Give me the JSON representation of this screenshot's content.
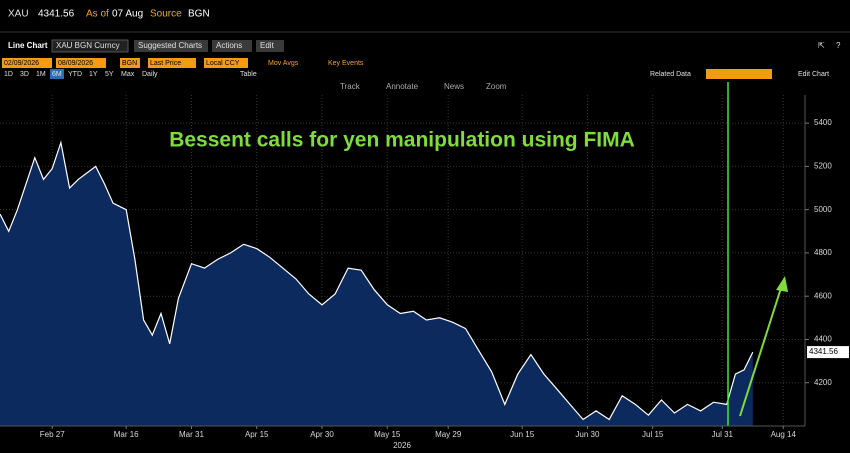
{
  "header": {
    "ticker": "XAU",
    "as_of_label": "As of",
    "as_of": "07 Aug",
    "source_label": "Source",
    "source": "BGN"
  },
  "toolbar": {
    "chart_type": "Line Chart",
    "security": "XAU BGN Curncy",
    "menus": [
      "Suggested Charts",
      "Actions",
      "Edit"
    ]
  },
  "settings_bar": {
    "start_date": "02/09/2026",
    "end_date": "08/09/2026",
    "source": "BGN",
    "field": "Last Price",
    "currency": "Local CCY",
    "mov_avgs": "Mov Avgs",
    "key_events": "Key Events",
    "related_data": "Related Data",
    "edit_chart": "Edit Chart"
  },
  "period_bar": {
    "periods": [
      "1D",
      "3D",
      "1M",
      "6M",
      "YTD",
      "1Y",
      "5Y",
      "Max",
      "Daily"
    ],
    "table": "Table"
  },
  "tools": [
    "Track",
    "Annotate",
    "News",
    "Zoom"
  ],
  "chart_data": {
    "type": "area",
    "annotation": "Bessent calls for yen manipulation using FIMA",
    "x_axis_year": "2026",
    "xlim": [
      "2026-02-15",
      "2026-08-19"
    ],
    "xticks": [
      {
        "value": "2026-02-27",
        "label": "Feb 27"
      },
      {
        "value": "2026-03-16",
        "label": "Mar 16"
      },
      {
        "value": "2026-03-31",
        "label": "Mar 31"
      },
      {
        "value": "2026-04-15",
        "label": "Apr 15"
      },
      {
        "value": "2026-04-30",
        "label": "Apr 30"
      },
      {
        "value": "2026-05-15",
        "label": "May 15"
      },
      {
        "value": "2026-05-29",
        "label": "May 29"
      },
      {
        "value": "2026-06-15",
        "label": "Jun 15"
      },
      {
        "value": "2026-06-30",
        "label": "Jun 30"
      },
      {
        "value": "2026-07-15",
        "label": "Jul 15"
      },
      {
        "value": "2026-07-31",
        "label": "Jul 31"
      },
      {
        "value": "2026-08-14",
        "label": "Aug 14"
      }
    ],
    "ylim": [
      4000,
      5530
    ],
    "yticks": [
      4200,
      4400,
      4600,
      4800,
      5000,
      5200,
      5400
    ],
    "grid": true,
    "x": [
      "2026-02-15",
      "2026-02-17",
      "2026-02-19",
      "2026-02-21",
      "2026-02-23",
      "2026-02-25",
      "2026-02-27",
      "2026-03-01",
      "2026-03-03",
      "2026-03-05",
      "2026-03-07",
      "2026-03-09",
      "2026-03-11",
      "2026-03-13",
      "2026-03-16",
      "2026-03-18",
      "2026-03-20",
      "2026-03-22",
      "2026-03-24",
      "2026-03-26",
      "2026-03-28",
      "2026-03-31",
      "2026-04-03",
      "2026-04-06",
      "2026-04-09",
      "2026-04-12",
      "2026-04-15",
      "2026-04-18",
      "2026-04-21",
      "2026-04-24",
      "2026-04-27",
      "2026-04-30",
      "2026-05-03",
      "2026-05-06",
      "2026-05-09",
      "2026-05-12",
      "2026-05-15",
      "2026-05-18",
      "2026-05-21",
      "2026-05-24",
      "2026-05-27",
      "2026-05-30",
      "2026-06-02",
      "2026-06-05",
      "2026-06-08",
      "2026-06-11",
      "2026-06-14",
      "2026-06-17",
      "2026-06-20",
      "2026-06-23",
      "2026-06-26",
      "2026-06-29",
      "2026-07-02",
      "2026-07-05",
      "2026-07-08",
      "2026-07-11",
      "2026-07-14",
      "2026-07-17",
      "2026-07-20",
      "2026-07-23",
      "2026-07-26",
      "2026-07-29",
      "2026-08-01",
      "2026-08-03",
      "2026-08-05",
      "2026-08-07"
    ],
    "series": [
      {
        "name": "XAU",
        "color": "#ffffff",
        "fill": "#0d2a5e",
        "values": [
          4980,
          4900,
          5000,
          5120,
          5240,
          5140,
          5190,
          5310,
          5100,
          5140,
          5170,
          5200,
          5120,
          5030,
          5000,
          4770,
          4490,
          4420,
          4520,
          4380,
          4590,
          4750,
          4730,
          4770,
          4800,
          4840,
          4820,
          4780,
          4730,
          4680,
          4610,
          4560,
          4610,
          4730,
          4720,
          4630,
          4560,
          4520,
          4530,
          4490,
          4500,
          4480,
          4450,
          4350,
          4250,
          4100,
          4240,
          4330,
          4240,
          4170,
          4100,
          4030,
          4070,
          4030,
          4140,
          4100,
          4050,
          4120,
          4060,
          4100,
          4070,
          4110,
          4100,
          4240,
          4260,
          4341.56
        ]
      }
    ]
  }
}
